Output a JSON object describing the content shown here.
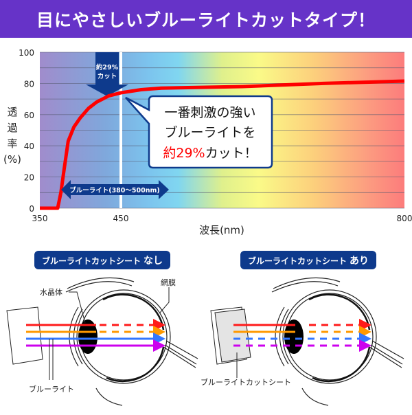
{
  "header": {
    "title": "目にやさしいブルーライトカットタイプ！"
  },
  "chart_data": {
    "type": "line",
    "title": "",
    "xlabel": "波長(nm)",
    "ylabel": [
      "透",
      "過",
      "率",
      "(%)"
    ],
    "xlim": [
      350,
      800
    ],
    "ylim": [
      0,
      100
    ],
    "x_ticks": [
      350,
      450,
      800
    ],
    "y_ticks": [
      0,
      20,
      40,
      60,
      80,
      100
    ],
    "grid": true,
    "background": "visible-spectrum gradient (violet to red)",
    "series": [
      {
        "color": "#ff0000",
        "x": [
          350,
          372,
          376,
          380,
          385,
          392,
          400,
          410,
          420,
          435,
          450,
          475,
          500,
          550,
          600,
          700,
          800
        ],
        "y": [
          0,
          0,
          10,
          25,
          43,
          52,
          58,
          64,
          68,
          72,
          74,
          76,
          77,
          77.5,
          78,
          80,
          81.5
        ]
      }
    ],
    "annotations": {
      "cut_arrow": [
        "約29%",
        "カット"
      ],
      "marker_wavelength": 450,
      "range_label": "ブルーライト(380〜500nm)",
      "range": [
        380,
        500
      ],
      "callout": {
        "line1": "一番刺激の強い",
        "line2": "ブルーライトを",
        "highlight": "約29%",
        "line3_rest": "カット！"
      }
    }
  },
  "diagram": {
    "without": {
      "badge_prefix": "ブルーライトカットシート",
      "badge_suffix": "なし",
      "lens_label": "水晶体",
      "retina_label": "網膜",
      "light_label": "ブルーライト"
    },
    "with": {
      "badge_prefix": "ブルーライトカットシート",
      "badge_suffix": "あり",
      "sheet_label": "ブルーライトカットシート"
    },
    "ray_colors": [
      "#ff1a1a",
      "#ff9900",
      "#3377ff",
      "#cc00ee"
    ]
  }
}
